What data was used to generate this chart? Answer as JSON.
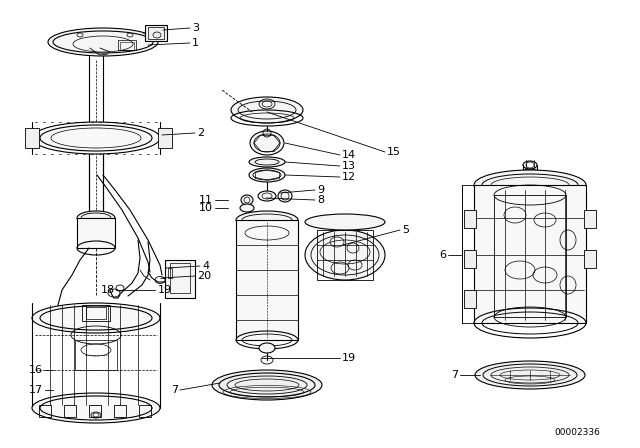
{
  "bg_color": "#ffffff",
  "diagram_id": "00002336",
  "figsize": [
    6.4,
    4.48
  ],
  "dpi": 100
}
